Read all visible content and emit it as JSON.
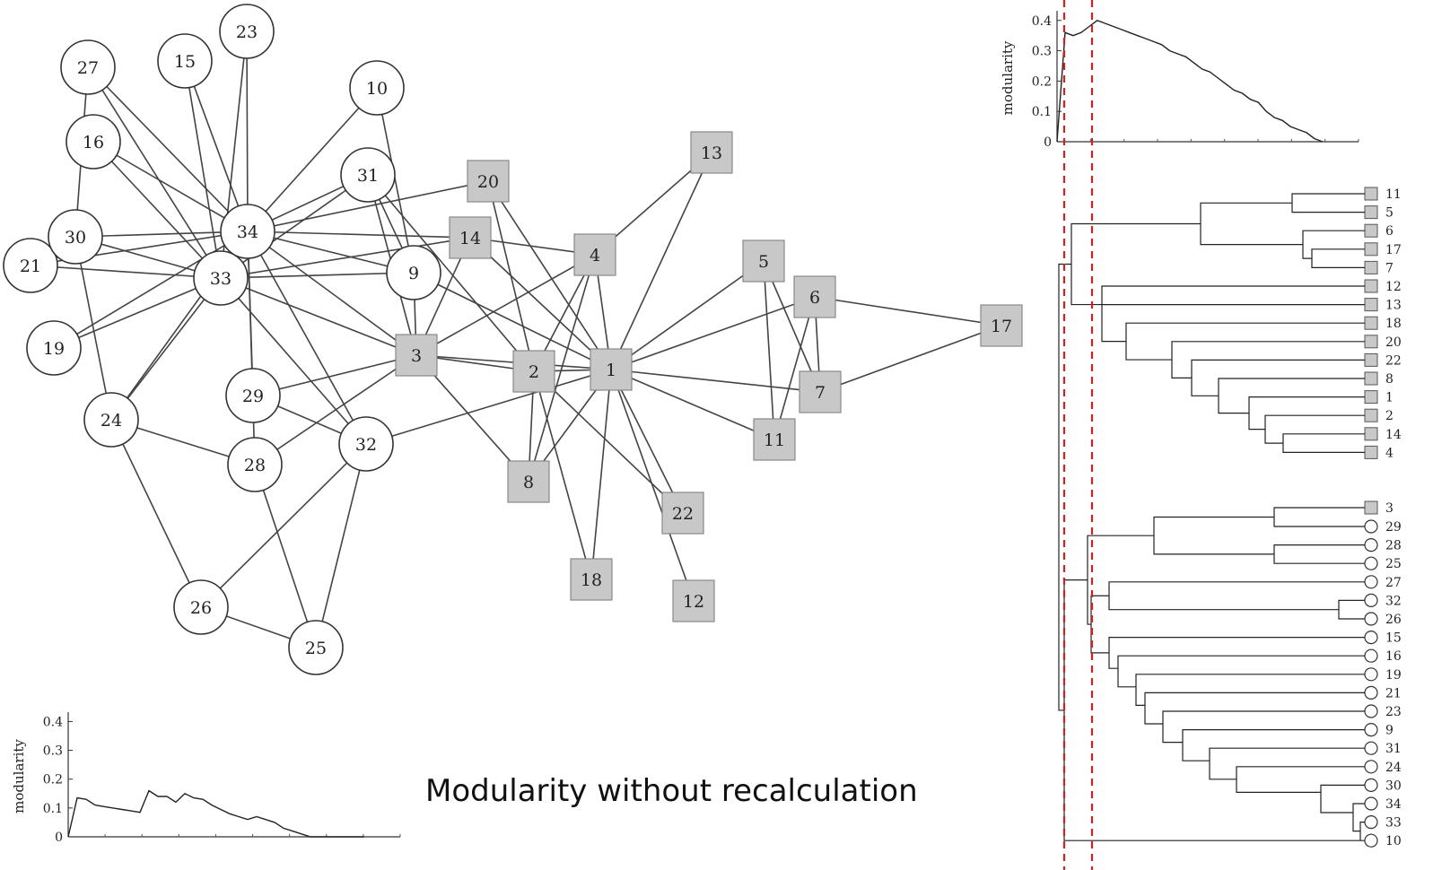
{
  "caption": "Modularity without recalculation",
  "colors": {
    "square_fill": "#c8c8c8",
    "edge": "#444444",
    "cut_line": "#cc2222"
  },
  "network": {
    "circle_nodes": [
      "10",
      "15",
      "16",
      "19",
      "21",
      "23",
      "24",
      "25",
      "26",
      "27",
      "28",
      "29",
      "30",
      "31",
      "32",
      "33",
      "34",
      "9"
    ],
    "square_nodes": [
      "1",
      "2",
      "3",
      "4",
      "5",
      "6",
      "7",
      "8",
      "11",
      "12",
      "13",
      "14",
      "17",
      "18",
      "20",
      "22"
    ],
    "edges": [
      [
        "34",
        "27"
      ],
      [
        "34",
        "15"
      ],
      [
        "34",
        "23"
      ],
      [
        "34",
        "10"
      ],
      [
        "34",
        "16"
      ],
      [
        "34",
        "31"
      ],
      [
        "34",
        "30"
      ],
      [
        "34",
        "21"
      ],
      [
        "34",
        "19"
      ],
      [
        "34",
        "24"
      ],
      [
        "34",
        "29"
      ],
      [
        "34",
        "28"
      ],
      [
        "34",
        "32"
      ],
      [
        "34",
        "9"
      ],
      [
        "34",
        "14"
      ],
      [
        "34",
        "20"
      ],
      [
        "34",
        "3"
      ],
      [
        "33",
        "27"
      ],
      [
        "33",
        "15"
      ],
      [
        "33",
        "23"
      ],
      [
        "33",
        "16"
      ],
      [
        "33",
        "31"
      ],
      [
        "33",
        "30"
      ],
      [
        "33",
        "21"
      ],
      [
        "33",
        "19"
      ],
      [
        "33",
        "24"
      ],
      [
        "33",
        "9"
      ],
      [
        "33",
        "3"
      ],
      [
        "33",
        "32"
      ],
      [
        "33",
        "14"
      ],
      [
        "27",
        "30"
      ],
      [
        "10",
        "9"
      ],
      [
        "31",
        "9"
      ],
      [
        "31",
        "2"
      ],
      [
        "31",
        "3"
      ],
      [
        "30",
        "24"
      ],
      [
        "24",
        "28"
      ],
      [
        "24",
        "26"
      ],
      [
        "26",
        "32"
      ],
      [
        "26",
        "25"
      ],
      [
        "28",
        "25"
      ],
      [
        "28",
        "3"
      ],
      [
        "32",
        "25"
      ],
      [
        "29",
        "32"
      ],
      [
        "29",
        "3"
      ],
      [
        "32",
        "1"
      ],
      [
        "9",
        "1"
      ],
      [
        "9",
        "3"
      ],
      [
        "20",
        "2"
      ],
      [
        "20",
        "1"
      ],
      [
        "14",
        "3"
      ],
      [
        "14",
        "1"
      ],
      [
        "14",
        "4"
      ],
      [
        "3",
        "1"
      ],
      [
        "3",
        "2"
      ],
      [
        "3",
        "8"
      ],
      [
        "3",
        "4"
      ],
      [
        "4",
        "2"
      ],
      [
        "4",
        "8"
      ],
      [
        "4",
        "1"
      ],
      [
        "4",
        "13"
      ],
      [
        "1",
        "2"
      ],
      [
        "1",
        "8"
      ],
      [
        "1",
        "13"
      ],
      [
        "1",
        "5"
      ],
      [
        "1",
        "6"
      ],
      [
        "1",
        "7"
      ],
      [
        "1",
        "11"
      ],
      [
        "1",
        "22"
      ],
      [
        "1",
        "12"
      ],
      [
        "1",
        "18"
      ],
      [
        "2",
        "8"
      ],
      [
        "2",
        "18"
      ],
      [
        "2",
        "22"
      ],
      [
        "5",
        "7"
      ],
      [
        "5",
        "11"
      ],
      [
        "6",
        "7"
      ],
      [
        "6",
        "11"
      ],
      [
        "6",
        "17"
      ],
      [
        "7",
        "17"
      ]
    ]
  },
  "dendrogram": {
    "square_leaves": [
      "11",
      "5",
      "6",
      "17",
      "7",
      "12",
      "13",
      "18",
      "20",
      "22",
      "8",
      "1",
      "2",
      "14",
      "4"
    ],
    "circle_leaves_marked_square": [
      "3"
    ],
    "circle_leaves": [
      "29",
      "28",
      "25",
      "27",
      "32",
      "26",
      "15",
      "16",
      "19",
      "21",
      "23",
      "9",
      "31",
      "24",
      "30",
      "34",
      "33",
      "10"
    ]
  },
  "chart_data": [
    {
      "type": "line",
      "ylabel": "modularity",
      "yticks": [
        "0",
        "0.1",
        "0.2",
        "0.3",
        "0.4"
      ],
      "ylim": [
        0,
        0.42
      ],
      "x": [
        0,
        1,
        2,
        3,
        4,
        5,
        6,
        7,
        8,
        9,
        10,
        11,
        12,
        13,
        14,
        15,
        16,
        17,
        18,
        19,
        20,
        21,
        22,
        23,
        24,
        25,
        26,
        27,
        28,
        29,
        30,
        31,
        32,
        33
      ],
      "values": [
        0,
        0.36,
        0.35,
        0.36,
        0.38,
        0.4,
        0.39,
        0.38,
        0.37,
        0.36,
        0.35,
        0.34,
        0.33,
        0.32,
        0.3,
        0.29,
        0.28,
        0.26,
        0.24,
        0.23,
        0.21,
        0.19,
        0.17,
        0.16,
        0.14,
        0.13,
        0.1,
        0.08,
        0.07,
        0.05,
        0.04,
        0.03,
        0.01,
        0
      ],
      "grid": false
    },
    {
      "type": "line",
      "ylabel": "modularity",
      "yticks": [
        "0",
        "0.1",
        "0.2",
        "0.3",
        "0.4"
      ],
      "ylim": [
        0,
        0.42
      ],
      "x": [
        0,
        1,
        2,
        3,
        4,
        5,
        6,
        7,
        8,
        9,
        10,
        11,
        12,
        13,
        14,
        15,
        16,
        17,
        18,
        19,
        20,
        21,
        22,
        23,
        24,
        25,
        26,
        27,
        28,
        29,
        30,
        31,
        32,
        33
      ],
      "values": [
        0,
        0.135,
        0.13,
        0.11,
        0.105,
        0.1,
        0.095,
        0.09,
        0.085,
        0.16,
        0.14,
        0.14,
        0.12,
        0.15,
        0.135,
        0.13,
        0.11,
        0.095,
        0.08,
        0.07,
        0.06,
        0.07,
        0.06,
        0.05,
        0.03,
        0.02,
        0.01,
        0,
        0,
        0,
        0,
        0,
        0,
        0
      ],
      "grid": false
    }
  ]
}
